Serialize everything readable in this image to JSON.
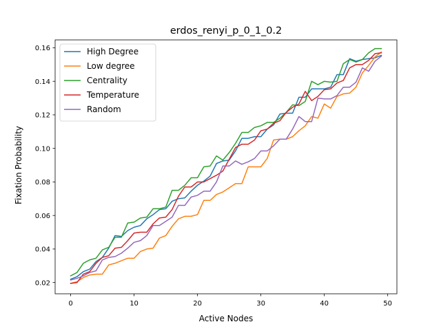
{
  "chart_data": {
    "type": "line",
    "title": "erdos_renyi_p_0_1_0.2",
    "xlabel": "Active Nodes",
    "ylabel": "Fixation Probability",
    "xlim": [
      -2.45,
      51.45
    ],
    "ylim": [
      0.0133,
      0.1647
    ],
    "x_ticks": [
      0,
      10,
      20,
      30,
      40,
      50
    ],
    "y_ticks": [
      0.02,
      0.04,
      0.06,
      0.08,
      0.1,
      0.12,
      0.14,
      0.16
    ],
    "x_tick_labels": [
      "0",
      "10",
      "20",
      "30",
      "40",
      "50"
    ],
    "y_tick_labels": [
      "0.02",
      "0.04",
      "0.06",
      "0.08",
      "0.10",
      "0.12",
      "0.14",
      "0.16"
    ],
    "grid": false,
    "legend_position": "top-left",
    "x": [
      0,
      1,
      2,
      3,
      4,
      5,
      6,
      7,
      8,
      9,
      10,
      11,
      12,
      13,
      14,
      15,
      16,
      17,
      18,
      19,
      20,
      21,
      22,
      23,
      24,
      25,
      26,
      27,
      28,
      29,
      30,
      31,
      32,
      33,
      34,
      35,
      36,
      37,
      38,
      39,
      40,
      41,
      42,
      43,
      44,
      45,
      46,
      47,
      48,
      49
    ],
    "series": [
      {
        "name": "High Degree",
        "color": "#1f77b4",
        "values": [
          0.022,
          0.0235,
          0.0265,
          0.028,
          0.0325,
          0.035,
          0.0405,
          0.048,
          0.0475,
          0.051,
          0.053,
          0.054,
          0.058,
          0.0605,
          0.0635,
          0.064,
          0.0685,
          0.07,
          0.0705,
          0.0745,
          0.078,
          0.0805,
          0.0835,
          0.091,
          0.0925,
          0.093,
          0.0985,
          0.106,
          0.106,
          0.107,
          0.107,
          0.1115,
          0.114,
          0.1205,
          0.121,
          0.121,
          0.1305,
          0.1305,
          0.1355,
          0.1355,
          0.1355,
          0.1365,
          0.144,
          0.144,
          0.1535,
          0.152,
          0.153,
          0.1535,
          0.154,
          0.1555
        ]
      },
      {
        "name": "Low degree",
        "color": "#ff7f0e",
        "values": [
          0.0195,
          0.0205,
          0.023,
          0.0245,
          0.025,
          0.025,
          0.0305,
          0.0315,
          0.033,
          0.0345,
          0.0345,
          0.0385,
          0.04,
          0.0405,
          0.0465,
          0.048,
          0.0535,
          0.058,
          0.0595,
          0.0595,
          0.0605,
          0.069,
          0.069,
          0.0725,
          0.074,
          0.0765,
          0.079,
          0.079,
          0.089,
          0.089,
          0.089,
          0.094,
          0.105,
          0.1055,
          0.1055,
          0.107,
          0.1105,
          0.1135,
          0.119,
          0.118,
          0.1265,
          0.124,
          0.131,
          0.1325,
          0.133,
          0.1365,
          0.145,
          0.1495,
          0.1545,
          0.1575
        ]
      },
      {
        "name": "Centrality",
        "color": "#2ca02c",
        "values": [
          0.024,
          0.026,
          0.0315,
          0.0335,
          0.0345,
          0.0395,
          0.041,
          0.047,
          0.047,
          0.0555,
          0.056,
          0.0585,
          0.059,
          0.064,
          0.064,
          0.065,
          0.075,
          0.075,
          0.078,
          0.0825,
          0.0825,
          0.089,
          0.0895,
          0.0955,
          0.093,
          0.0975,
          0.103,
          0.1095,
          0.1095,
          0.1125,
          0.1135,
          0.1155,
          0.1155,
          0.118,
          0.1215,
          0.126,
          0.1255,
          0.128,
          0.14,
          0.138,
          0.14,
          0.1395,
          0.14,
          0.1505,
          0.153,
          0.1515,
          0.153,
          0.157,
          0.1595,
          0.1595
        ]
      },
      {
        "name": "Temperature",
        "color": "#d62728",
        "values": [
          0.0195,
          0.02,
          0.025,
          0.0265,
          0.0315,
          0.035,
          0.036,
          0.0405,
          0.041,
          0.045,
          0.0495,
          0.05,
          0.05,
          0.055,
          0.0585,
          0.059,
          0.0635,
          0.0715,
          0.077,
          0.077,
          0.08,
          0.08,
          0.082,
          0.084,
          0.0865,
          0.0935,
          0.1005,
          0.1025,
          0.1025,
          0.105,
          0.1105,
          0.1115,
          0.115,
          0.1165,
          0.1215,
          0.1245,
          0.1265,
          0.134,
          0.1285,
          0.131,
          0.135,
          0.1355,
          0.139,
          0.1405,
          0.148,
          0.15,
          0.15,
          0.1525,
          0.1565,
          0.157
        ]
      },
      {
        "name": "Random",
        "color": "#9467bd",
        "values": [
          0.0215,
          0.0225,
          0.024,
          0.026,
          0.027,
          0.0335,
          0.035,
          0.0355,
          0.0375,
          0.0405,
          0.044,
          0.045,
          0.048,
          0.054,
          0.054,
          0.0565,
          0.059,
          0.066,
          0.066,
          0.071,
          0.072,
          0.0745,
          0.0745,
          0.08,
          0.0895,
          0.0895,
          0.0925,
          0.0905,
          0.092,
          0.094,
          0.0985,
          0.0985,
          0.1015,
          0.1055,
          0.1055,
          0.1115,
          0.119,
          0.116,
          0.116,
          0.13,
          0.1295,
          0.1295,
          0.1315,
          0.1365,
          0.1365,
          0.1395,
          0.148,
          0.146,
          0.152,
          0.155
        ]
      }
    ]
  }
}
